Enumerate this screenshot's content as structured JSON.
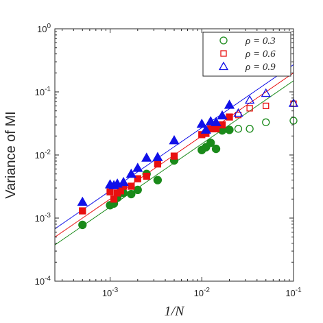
{
  "chart_data": {
    "type": "scatter",
    "title": "",
    "xlabel": "1/N",
    "ylabel": "Variance of MI",
    "x_scale": "log",
    "y_scale": "log",
    "xlim": [
      0.00025,
      0.1
    ],
    "ylim": [
      0.0001,
      1
    ],
    "x_ticks": [
      {
        "value": 0.001,
        "base": "10",
        "exp": "-3"
      },
      {
        "value": 0.01,
        "base": "10",
        "exp": "-2"
      },
      {
        "value": 0.1,
        "base": "10",
        "exp": "-1"
      }
    ],
    "y_ticks": [
      {
        "value": 0.0001,
        "base": "10",
        "exp": "-4"
      },
      {
        "value": 0.001,
        "base": "10",
        "exp": "-3"
      },
      {
        "value": 0.01,
        "base": "10",
        "exp": "-2"
      },
      {
        "value": 0.1,
        "base": "10",
        "exp": "-1"
      },
      {
        "value": 1,
        "base": "10",
        "exp": "0"
      }
    ],
    "grid": false,
    "legend_position": "top-right",
    "series": [
      {
        "name": "ρ = 0.3",
        "color": "#1a8a1a",
        "marker": "circle",
        "filled_points": [
          [
            0.0005,
            0.00078
          ],
          [
            0.001,
            0.0016
          ],
          [
            0.0011,
            0.0017
          ],
          [
            0.0012,
            0.0021
          ],
          [
            0.0014,
            0.0025
          ],
          [
            0.0017,
            0.0024
          ],
          [
            0.002,
            0.0028
          ],
          [
            0.0025,
            0.005
          ],
          [
            0.0033,
            0.004
          ],
          [
            0.005,
            0.0082
          ],
          [
            0.01,
            0.012
          ],
          [
            0.0111,
            0.0133
          ],
          [
            0.0125,
            0.0156
          ],
          [
            0.0143,
            0.0125
          ],
          [
            0.0167,
            0.0245
          ],
          [
            0.02,
            0.025
          ]
        ],
        "open_points": [
          [
            0.025,
            0.026
          ],
          [
            0.0333,
            0.026
          ],
          [
            0.05,
            0.033
          ],
          [
            0.1,
            0.035
          ]
        ],
        "fit": {
          "intercept": 1.5,
          "slope": 1
        }
      },
      {
        "name": "ρ = 0.6",
        "color": "#e81010",
        "marker": "square",
        "filled_points": [
          [
            0.0005,
            0.0013
          ],
          [
            0.001,
            0.0026
          ],
          [
            0.0011,
            0.002
          ],
          [
            0.0012,
            0.0025
          ],
          [
            0.0013,
            0.0027
          ],
          [
            0.0014,
            0.0032
          ],
          [
            0.0017,
            0.0032
          ],
          [
            0.002,
            0.0042
          ],
          [
            0.0025,
            0.0046
          ],
          [
            0.0033,
            0.0072
          ],
          [
            0.005,
            0.0096
          ],
          [
            0.01,
            0.021
          ],
          [
            0.0111,
            0.022
          ],
          [
            0.0125,
            0.026
          ],
          [
            0.0143,
            0.026
          ],
          [
            0.0167,
            0.03
          ],
          [
            0.02,
            0.04
          ]
        ],
        "open_points": [
          [
            0.025,
            0.043
          ],
          [
            0.0333,
            0.055
          ],
          [
            0.05,
            0.06
          ],
          [
            0.1,
            0.065
          ]
        ],
        "fit": {
          "intercept": 2,
          "slope": 1
        }
      },
      {
        "name": "ρ = 0.9",
        "color": "#1010e8",
        "marker": "triangle",
        "filled_points": [
          [
            0.0005,
            0.0018
          ],
          [
            0.001,
            0.0034
          ],
          [
            0.0011,
            0.0033
          ],
          [
            0.0012,
            0.0035
          ],
          [
            0.0014,
            0.0037
          ],
          [
            0.0017,
            0.005
          ],
          [
            0.002,
            0.0062
          ],
          [
            0.0025,
            0.009
          ],
          [
            0.0033,
            0.0092
          ],
          [
            0.005,
            0.017
          ],
          [
            0.01,
            0.031
          ],
          [
            0.0111,
            0.025
          ],
          [
            0.0125,
            0.034
          ],
          [
            0.0143,
            0.033
          ],
          [
            0.0167,
            0.042
          ],
          [
            0.02,
            0.062
          ]
        ],
        "open_points": [
          [
            0.025,
            0.046
          ],
          [
            0.0333,
            0.074
          ],
          [
            0.05,
            0.095
          ],
          [
            0.1,
            0.066
          ]
        ],
        "fit": {
          "intercept": 2.7,
          "slope": 1
        }
      }
    ]
  }
}
